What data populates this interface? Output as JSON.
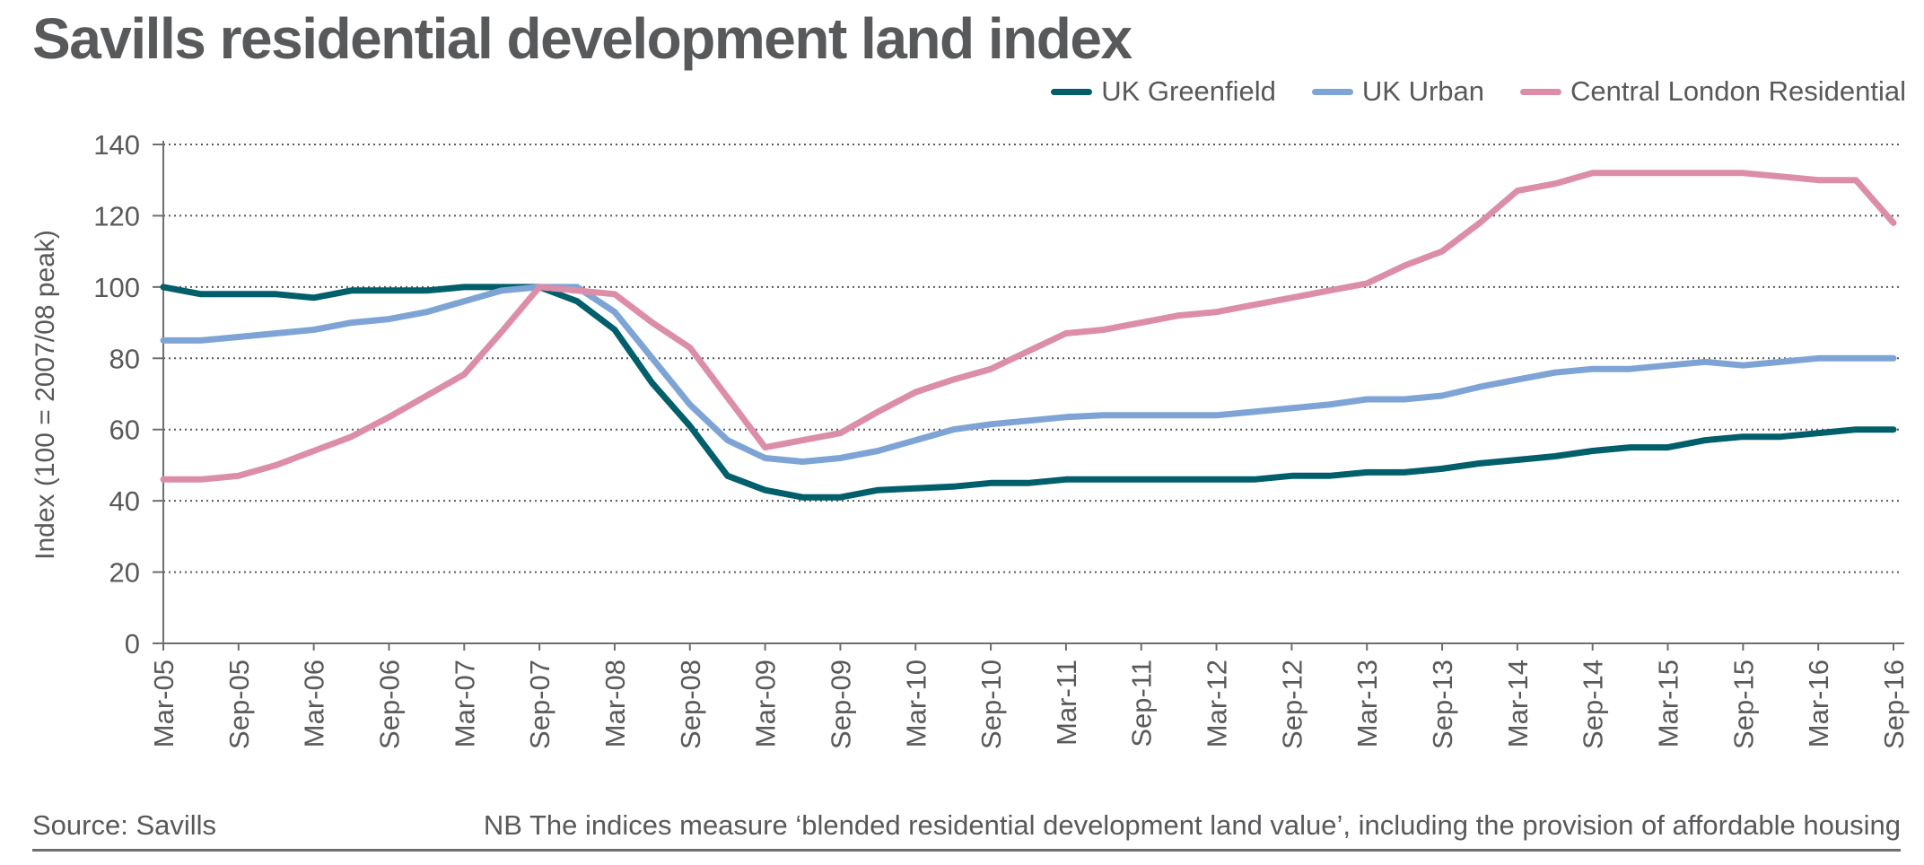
{
  "title": "Savills residential development land index",
  "footer": {
    "source": "Source: Savills",
    "note": "NB The indices measure ‘blended residential development land value’, including the provision of affordable housing"
  },
  "chart_data": {
    "type": "line",
    "title": "Savills residential development land index",
    "xlabel": "",
    "ylabel": "Index (100 = 2007/08 peak)",
    "ylim": [
      0,
      140
    ],
    "yticks": [
      0,
      20,
      40,
      60,
      80,
      100,
      120,
      140
    ],
    "grid": "horizontal dotted",
    "legend_position": "top-right",
    "x": [
      "Mar-05",
      "Jun-05",
      "Sep-05",
      "Dec-05",
      "Mar-06",
      "Jun-06",
      "Sep-06",
      "Dec-06",
      "Mar-07",
      "Jun-07",
      "Sep-07",
      "Dec-07",
      "Mar-08",
      "Jun-08",
      "Sep-08",
      "Dec-08",
      "Mar-09",
      "Jun-09",
      "Sep-09",
      "Dec-09",
      "Mar-10",
      "Jun-10",
      "Sep-10",
      "Dec-10",
      "Mar-11",
      "Jun-11",
      "Sep-11",
      "Dec-11",
      "Mar-12",
      "Jun-12",
      "Sep-12",
      "Dec-12",
      "Mar-13",
      "Jun-13",
      "Sep-13",
      "Dec-13",
      "Mar-14",
      "Jun-14",
      "Sep-14",
      "Dec-14",
      "Mar-15",
      "Jun-15",
      "Sep-15",
      "Dec-15",
      "Mar-16",
      "Jun-16",
      "Sep-16"
    ],
    "xtick_labels": [
      "Mar-05",
      "Sep-05",
      "Mar-06",
      "Sep-06",
      "Mar-07",
      "Sep-07",
      "Mar-08",
      "Sep-08",
      "Mar-09",
      "Sep-09",
      "Mar-10",
      "Sep-10",
      "Mar-11",
      "Sep-11",
      "Mar-12",
      "Sep-12",
      "Mar-13",
      "Sep-13",
      "Mar-14",
      "Sep-14",
      "Mar-15",
      "Sep-15",
      "Mar-16",
      "Sep-16"
    ],
    "series": [
      {
        "name": "UK Greenfield",
        "color": "#005f6b",
        "values": [
          100,
          98,
          98,
          98,
          97,
          99,
          99,
          99,
          100,
          100,
          100,
          96,
          88,
          73,
          61,
          47,
          43,
          41,
          41,
          43,
          43.5,
          44,
          45,
          45,
          46,
          46,
          46,
          46,
          46,
          46,
          47,
          47,
          48,
          48,
          49,
          50.5,
          51.5,
          52.5,
          54,
          55,
          55,
          57,
          58,
          58,
          59,
          60,
          60
        ]
      },
      {
        "name": "UK Urban",
        "color": "#7ea4d6",
        "values": [
          85,
          85,
          86,
          87,
          88,
          90,
          91,
          93,
          96,
          99,
          100,
          100,
          93,
          80,
          67,
          57,
          52,
          51,
          52,
          54,
          57,
          60,
          61.5,
          62.5,
          63.5,
          64,
          64,
          64,
          64,
          65,
          66,
          67,
          68.5,
          68.5,
          69.5,
          72,
          74,
          76,
          77,
          77,
          78,
          79,
          78,
          79,
          80,
          80,
          80
        ]
      },
      {
        "name": "Central London Residential",
        "color": "#dc8ea8",
        "values": [
          46,
          46,
          47,
          50,
          54,
          58,
          63.5,
          69.5,
          75.5,
          87.5,
          100,
          99,
          98,
          90,
          83,
          69,
          55,
          57,
          59,
          65,
          70.5,
          74,
          77,
          82,
          87,
          88,
          90,
          92,
          93,
          95,
          97,
          99,
          101,
          106,
          110,
          118,
          127,
          129,
          132,
          132,
          132,
          132,
          132,
          131,
          130,
          130,
          118
        ]
      }
    ]
  }
}
